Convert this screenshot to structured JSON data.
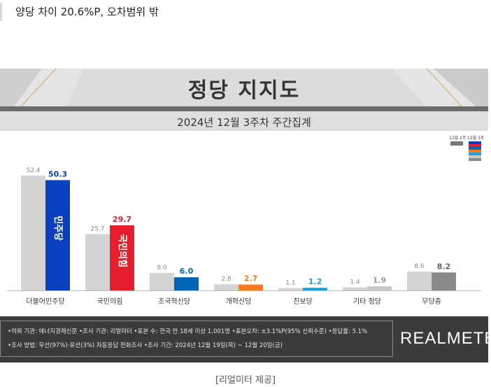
{
  "headline": "양당 차이 20.6%P, 오차범위 밖",
  "chart_data": {
    "type": "bar",
    "title": "정당 지지도",
    "subtitle": "2024년 12월 3주차 주간집계",
    "categories": [
      "더불어민주당",
      "국민의힘",
      "조국혁신당",
      "개혁신당",
      "진보당",
      "기타 정당",
      "무당층"
    ],
    "series": [
      {
        "name": "12월 2주",
        "values": [
          52.4,
          25.7,
          8.0,
          2.8,
          1.1,
          1.4,
          8.6
        ]
      },
      {
        "name": "12월 3주",
        "values": [
          50.3,
          29.7,
          6.0,
          2.7,
          1.2,
          1.9,
          8.2
        ]
      }
    ],
    "previous_color": "#d4d4d4",
    "current_colors": [
      "#0a3fbf",
      "#e61e2b",
      "#0064b7",
      "#ff7920",
      "#1aa3d6",
      "#c8c8c8",
      "#8a8a8a"
    ],
    "current_label_colors": [
      "#0a3fbf",
      "#e61e2b",
      "#0064b7",
      "#ff7920",
      "#1aa3d6",
      "#999999",
      "#666666"
    ],
    "bar_marks": [
      "민주당",
      "국민의힘",
      "",
      "",
      "",
      "",
      ""
    ],
    "ylim": [
      0,
      60
    ],
    "legend_position": "top-right",
    "grid": false
  },
  "footer": {
    "line1": "•의뢰 기관: 에너지경제신문  •조사 기관: 리얼미터  •표본 수: 전국 만 18세 이상 1,001명  •표본오차: ±3.1%P(95% 신뢰수준)  •응답률: 5.1%",
    "line2": "•조사 방법: 무선(97%)·유선(3%) 자동응답 전화조사  •조사 기간: 2024년 12월 19일(목) ~ 12월 20일(금)",
    "brand": "REALMETER"
  },
  "caption": "[리얼미터 제공]"
}
